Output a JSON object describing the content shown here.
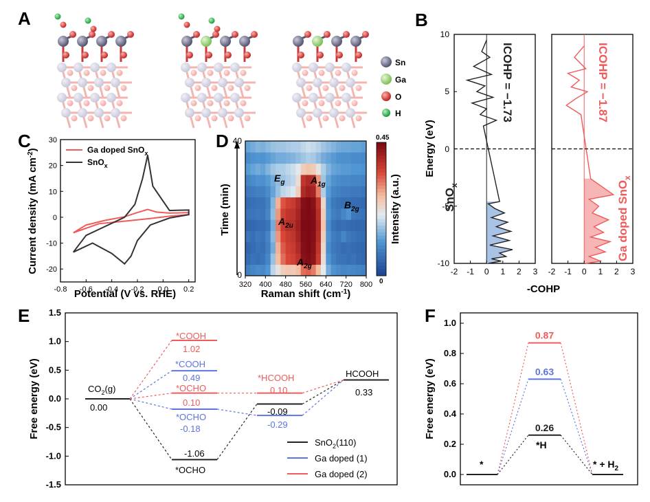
{
  "panel_labels": [
    "A",
    "B",
    "C",
    "D",
    "E",
    "F"
  ],
  "colors": {
    "black": "#222222",
    "blue": "#5b74e0",
    "red": "#ef5a5a",
    "cohp_fill_black": "#a9c3e6",
    "cohp_fill_red": "#f7b6b6",
    "sn": "#6e6e8c",
    "ga": "#9ed27e",
    "o": "#d63a3a",
    "h": "#2bb24c"
  },
  "panelA": {
    "legend": [
      {
        "label": "Sn",
        "color": "#77779a"
      },
      {
        "label": "Ga",
        "color": "#9ed27e"
      },
      {
        "label": "O",
        "color": "#d63a3a"
      },
      {
        "label": "H",
        "color": "#2bb24c"
      }
    ]
  },
  "chart_data": [
    {
      "panel": "B",
      "type": "line",
      "xlabel": "-COHP",
      "ylabel": "Energy (eV)",
      "xlim": [
        -2,
        3
      ],
      "ylim": [
        -10,
        10
      ],
      "xticks": [
        "-2",
        "-1",
        "0",
        "1",
        "2",
        "3"
      ],
      "yticks": [
        "10",
        "5",
        "0",
        "-5",
        "-10"
      ],
      "series": [
        {
          "name": "SnO",
          "name_sub": "x",
          "annotation": "ICOHP = −1.73",
          "color": "#222222",
          "x": [
            0,
            -0.3,
            0.2,
            -0.8,
            0.3,
            -1.2,
            -0.1,
            -0.6,
            0.4,
            -0.9,
            0,
            -0.4,
            0.6,
            -0.2,
            0.8,
            0.1,
            0.5,
            1.1,
            0.3,
            1.3,
            0.6,
            1.5,
            0.4,
            1.4,
            0.2,
            1.6,
            0.8,
            1.2,
            0.3,
            0.9,
            0.1
          ],
          "y": [
            9.5,
            8.5,
            8.0,
            7.2,
            6.5,
            6.0,
            5.5,
            5.0,
            4.5,
            4.0,
            3.5,
            3.0,
            2.5,
            2.0,
            -4.6,
            -4.8,
            -5.2,
            -5.6,
            -6.0,
            -6.4,
            -6.8,
            -7.2,
            -7.6,
            -8.0,
            -8.4,
            -8.8,
            -9.1,
            -9.4,
            -9.6,
            -9.8,
            -10
          ]
        },
        {
          "name": "Ga doped SnO",
          "name_sub": "x",
          "annotation": "ICOHP = −1.87",
          "color": "#ef5a5a",
          "x": [
            0,
            -0.6,
            0.1,
            -1.0,
            -0.3,
            -0.8,
            0.2,
            -0.5,
            -1.1,
            -0.2,
            0.4,
            1.8,
            0.3,
            0.9,
            0.5,
            1.5,
            0.6,
            1.2,
            0.4,
            1.6,
            0.7,
            1.3,
            0.3,
            1.0,
            0.1
          ],
          "y": [
            9.0,
            8.0,
            7.0,
            6.6,
            6.0,
            5.4,
            5.0,
            4.4,
            3.8,
            3.0,
            -2.6,
            -4.0,
            -4.4,
            -5.0,
            -5.6,
            -6.2,
            -6.8,
            -7.3,
            -7.7,
            -8.1,
            -8.6,
            -9.0,
            -9.4,
            -9.8,
            -10
          ]
        }
      ]
    },
    {
      "panel": "C",
      "type": "line",
      "xlabel": "Potential (V vs. RHE)",
      "ylabel": "Current density (mA cm",
      "ylabel_sup": "-2",
      "xlim": [
        -0.8,
        0.25
      ],
      "ylim": [
        -25,
        30
      ],
      "xticks": [
        "-0.8",
        "-0.6",
        "-0.4",
        "-0.2",
        "0.0",
        "0.2"
      ],
      "yticks": [
        "30",
        "20",
        "10",
        "0",
        "-10",
        "-20"
      ],
      "series": [
        {
          "name": "Ga doped SnO",
          "name_sub": "x",
          "color": "#ef5a5a",
          "x": [
            -0.7,
            -0.6,
            -0.45,
            -0.3,
            -0.2,
            -0.12,
            -0.05,
            0.05,
            0.2,
            0.2,
            0.05,
            -0.1,
            -0.3,
            -0.5,
            -0.7
          ],
          "y": [
            -6.0,
            -3.0,
            -1.2,
            0.2,
            1.8,
            3.0,
            2.0,
            1.6,
            1.8,
            1.0,
            0.4,
            -0.5,
            -1.5,
            -2.5,
            -6.0
          ]
        },
        {
          "name": "SnO",
          "name_sub": "x",
          "color": "#333333",
          "x": [
            -0.7,
            -0.6,
            -0.45,
            -0.3,
            -0.22,
            -0.16,
            -0.12,
            -0.08,
            0.05,
            0.2,
            0.2,
            0.05,
            -0.1,
            -0.2,
            -0.25,
            -0.3,
            -0.4,
            -0.55,
            -0.7
          ],
          "y": [
            -13.5,
            -7.0,
            -3.5,
            0.0,
            5.0,
            15.0,
            24.0,
            12.0,
            2.6,
            2.8,
            1.0,
            -0.3,
            -3.0,
            -9.0,
            -15.0,
            -18.0,
            -14.0,
            -10.0,
            -13.5
          ]
        }
      ]
    },
    {
      "panel": "D",
      "type": "heatmap",
      "xlabel": "Raman shift (cm",
      "xlabel_sup": "-1",
      "ylabel": "Time (min)",
      "colorbar_label": "Intensity (a.u.)",
      "colorbar_range": [
        "0",
        "0.45"
      ],
      "xlim": [
        320,
        800
      ],
      "ylim": [
        0,
        40
      ],
      "xticks": [
        "320",
        "400",
        "480",
        "560",
        "640",
        "720",
        "800"
      ],
      "yticks": [
        "0",
        "40"
      ],
      "band_labels": [
        "E",
        "A",
        "B",
        "A",
        "A"
      ],
      "band_subs": [
        "g",
        "1g",
        "2g",
        "2u",
        "2g"
      ],
      "x_centers": [
        330,
        350,
        370,
        390,
        410,
        430,
        450,
        470,
        490,
        510,
        530,
        550,
        570,
        590,
        610,
        630,
        650,
        670,
        690,
        710,
        730,
        750,
        770,
        790
      ],
      "rows_bottom_to_top": [
        [
          0.18,
          0.2,
          0.22,
          0.21,
          0.25,
          0.4,
          0.48,
          0.55,
          0.57,
          0.56,
          0.6,
          0.72,
          0.74,
          0.7,
          0.6,
          0.45,
          0.3,
          0.24,
          0.22,
          0.2,
          0.21,
          0.2,
          0.19,
          0.18
        ],
        [
          0.12,
          0.14,
          0.13,
          0.15,
          0.2,
          0.35,
          0.6,
          0.72,
          0.78,
          0.8,
          0.85,
          0.97,
          0.99,
          0.96,
          0.82,
          0.5,
          0.25,
          0.18,
          0.15,
          0.14,
          0.13,
          0.14,
          0.12,
          0.11
        ],
        [
          0.1,
          0.12,
          0.14,
          0.13,
          0.18,
          0.3,
          0.62,
          0.75,
          0.8,
          0.82,
          0.88,
          0.98,
          1.0,
          0.97,
          0.84,
          0.52,
          0.22,
          0.16,
          0.14,
          0.12,
          0.13,
          0.12,
          0.11,
          0.1
        ],
        [
          0.15,
          0.13,
          0.16,
          0.14,
          0.2,
          0.33,
          0.66,
          0.78,
          0.82,
          0.84,
          0.9,
          0.99,
          1.0,
          0.98,
          0.86,
          0.55,
          0.24,
          0.17,
          0.15,
          0.2,
          0.16,
          0.14,
          0.13,
          0.12
        ],
        [
          0.1,
          0.11,
          0.12,
          0.12,
          0.15,
          0.3,
          0.7,
          0.82,
          0.86,
          0.86,
          0.92,
          1.0,
          1.0,
          0.99,
          0.88,
          0.58,
          0.22,
          0.14,
          0.12,
          0.13,
          0.12,
          0.11,
          0.1,
          0.1
        ],
        [
          0.14,
          0.15,
          0.16,
          0.15,
          0.2,
          0.34,
          0.66,
          0.8,
          0.84,
          0.85,
          0.9,
          0.99,
          1.0,
          0.98,
          0.86,
          0.55,
          0.25,
          0.18,
          0.16,
          0.2,
          0.24,
          0.16,
          0.15,
          0.14
        ],
        [
          0.12,
          0.13,
          0.14,
          0.14,
          0.18,
          0.32,
          0.62,
          0.76,
          0.8,
          0.82,
          0.88,
          0.98,
          1.0,
          0.97,
          0.84,
          0.52,
          0.23,
          0.16,
          0.14,
          0.13,
          0.13,
          0.12,
          0.12,
          0.11
        ],
        [
          0.16,
          0.17,
          0.18,
          0.18,
          0.22,
          0.28,
          0.35,
          0.4,
          0.42,
          0.44,
          0.55,
          0.88,
          0.92,
          0.9,
          0.7,
          0.38,
          0.26,
          0.2,
          0.18,
          0.17,
          0.17,
          0.16,
          0.16,
          0.15
        ],
        [
          0.2,
          0.22,
          0.24,
          0.23,
          0.26,
          0.3,
          0.34,
          0.36,
          0.38,
          0.4,
          0.5,
          0.84,
          0.88,
          0.86,
          0.66,
          0.36,
          0.28,
          0.24,
          0.22,
          0.21,
          0.21,
          0.2,
          0.2,
          0.19
        ],
        [
          0.26,
          0.28,
          0.3,
          0.28,
          0.32,
          0.36,
          0.38,
          0.38,
          0.4,
          0.42,
          0.46,
          0.55,
          0.58,
          0.56,
          0.48,
          0.38,
          0.32,
          0.28,
          0.27,
          0.26,
          0.26,
          0.25,
          0.25,
          0.24
        ],
        [
          0.22,
          0.24,
          0.25,
          0.24,
          0.26,
          0.28,
          0.3,
          0.3,
          0.31,
          0.32,
          0.34,
          0.36,
          0.38,
          0.37,
          0.34,
          0.3,
          0.28,
          0.26,
          0.24,
          0.23,
          0.23,
          0.22,
          0.22,
          0.21
        ],
        [
          0.28,
          0.3,
          0.32,
          0.31,
          0.33,
          0.35,
          0.36,
          0.36,
          0.37,
          0.38,
          0.38,
          0.4,
          0.42,
          0.41,
          0.39,
          0.36,
          0.34,
          0.32,
          0.3,
          0.29,
          0.29,
          0.28,
          0.28,
          0.27
        ]
      ]
    },
    {
      "panel": "E",
      "type": "line",
      "ylabel": "Free energy (eV)",
      "ylim": [
        -1.5,
        1.5
      ],
      "yticks": [
        "1.5",
        "1.0",
        "0.5",
        "0.0",
        "-0.5",
        "-1.0",
        "-1.5"
      ],
      "states": [
        {
          "label": "CO",
          "label_sub": "2",
          "label_after": "(g)",
          "value": 0.0,
          "value_text": "0.00",
          "color": "black"
        },
        {
          "label": "HCOOH",
          "value": 0.33,
          "value_text": "0.33",
          "color": "black"
        }
      ],
      "series": [
        {
          "name": "SnO",
          "name_sub": "2",
          "name_after": "(110)",
          "color": "#222222",
          "steps": [
            {
              "label": "*OCHO",
              "value": -1.06,
              "value_text": "-1.06"
            },
            {
              "value": -0.09,
              "value_text": "-0.09"
            }
          ]
        },
        {
          "name": "Ga doped (1)",
          "color": "#5b74e0",
          "steps": [
            {
              "label": "*OCHO",
              "value": -0.18,
              "value_text": "-0.18"
            },
            {
              "value": -0.29,
              "value_text": "-0.29"
            }
          ],
          "extra": [
            {
              "label": "*COOH",
              "value": 0.49,
              "value_text": "0.49"
            }
          ]
        },
        {
          "name": "Ga doped (2)",
          "color": "#ef5a5a",
          "steps": [
            {
              "label": "*OCHO",
              "value": 0.1,
              "value_text": "0.10"
            },
            {
              "label": "*HCOOH",
              "value": 0.1,
              "value_text": "0.10"
            }
          ],
          "extra": [
            {
              "label": "*COOH",
              "value": 1.02,
              "value_text": "1.02"
            }
          ]
        }
      ]
    },
    {
      "panel": "F",
      "type": "line",
      "ylabel": "Free energy (eV)",
      "ylim": [
        0,
        1.0
      ],
      "yticks": [
        "1.0",
        "0.8",
        "0.6",
        "0.4",
        "0.2",
        "0.0"
      ],
      "state_labels": [
        "*",
        "*H",
        "* + H"
      ],
      "state_label_sub": "2",
      "series": [
        {
          "value": 0.87,
          "value_text": "0.87",
          "color": "#ef5a5a"
        },
        {
          "value": 0.63,
          "value_text": "0.63",
          "color": "#5b74e0"
        },
        {
          "value": 0.26,
          "value_text": "0.26",
          "color": "#222222"
        }
      ]
    }
  ]
}
